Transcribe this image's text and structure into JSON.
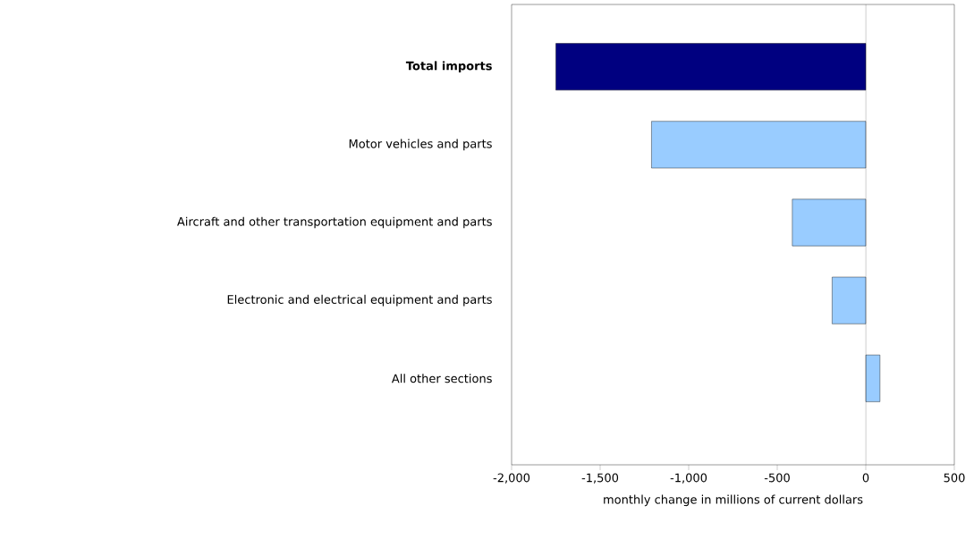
{
  "chart_data": {
    "type": "bar",
    "orientation": "horizontal",
    "xlabel": "monthly change in millions of current dollars",
    "categories": [
      "**Total imports**",
      "Motor vehicles and parts",
      "Aircraft and other transportation equipment and parts",
      "Electronic and electrical equipment and parts",
      "All other sections"
    ],
    "values": [
      -1750,
      -1210,
      -415,
      -190,
      80
    ],
    "colors": [
      "#000080",
      "#99ccff",
      "#99ccff",
      "#99ccff",
      "#99ccff"
    ],
    "xlim": [
      -2000,
      500
    ],
    "xticks": [
      {
        "value": -2000,
        "label": "-2,000"
      },
      {
        "value": -1500,
        "label": "-1,500"
      },
      {
        "value": -1000,
        "label": "-1,000"
      },
      {
        "value": -500,
        "label": "-500"
      },
      0,
      500
    ],
    "ref_lines": [
      {
        "axis": "x",
        "value": 0,
        "color": "#000000"
      }
    ]
  }
}
